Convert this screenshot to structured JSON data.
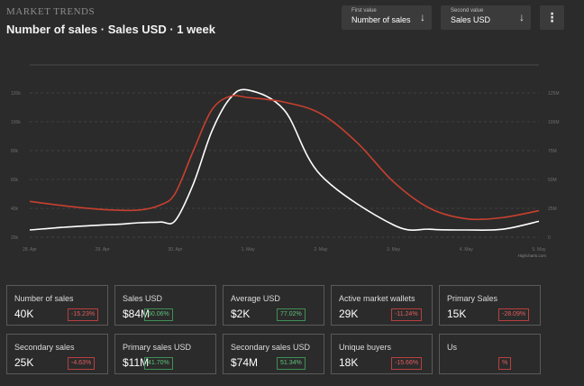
{
  "brand": "MARKET TRENDS",
  "title": "Number of sales · Sales USD · 1 week",
  "first_select": {
    "label": "First value",
    "value": "Number of sales"
  },
  "second_select": {
    "label": "Second value",
    "value": "Sales USD"
  },
  "icons": {
    "first_arrow": "arrow-down-icon",
    "second_arrow": "arrow-down-icon",
    "menu": "more-vertical-icon"
  },
  "icon_glyphs": {
    "arrow": "↓",
    "menu": "⋮"
  },
  "chart_data": {
    "type": "line",
    "x_ticks": [
      "28. Apr",
      "29. Apr",
      "30. Apr",
      "1. May",
      "2. May",
      "3. May",
      "4. May",
      "5. May"
    ],
    "y_left_ticks": [
      "20k",
      "40k",
      "60k",
      "80k",
      "100k",
      "120k"
    ],
    "y_left_range": [
      20000,
      120000
    ],
    "y_right_ticks": [
      "0",
      "25M",
      "50M",
      "75M",
      "100M",
      "125M"
    ],
    "y_right_range": [
      0,
      125000000
    ],
    "credit": "Highcharts.com",
    "grid": true,
    "series": [
      {
        "axis": "left",
        "color": "#ffffff",
        "x": [
          0,
          0.5,
          1,
          1.25,
          1.5,
          1.8,
          2,
          2.25,
          2.5,
          2.75,
          3,
          3.5,
          4,
          5,
          5.5,
          6,
          6.5,
          7
        ],
        "values": [
          25000,
          27000,
          28500,
          29000,
          30000,
          30500,
          31500,
          57000,
          93000,
          116000,
          122000,
          108000,
          63000,
          28500,
          25500,
          25000,
          25500,
          31000
        ]
      },
      {
        "axis": "right",
        "color": "#c8402f",
        "x": [
          0,
          0.5,
          1,
          1.5,
          1.8,
          2,
          2.25,
          2.5,
          2.75,
          3,
          3.5,
          4,
          4.5,
          5,
          5.5,
          6,
          6.5,
          7
        ],
        "values": [
          31000000,
          27000000,
          24000000,
          23500000,
          28000000,
          38000000,
          75000000,
          110000000,
          122000000,
          121000000,
          117000000,
          107000000,
          82000000,
          48000000,
          25000000,
          16000000,
          17000000,
          23000000
        ]
      }
    ]
  },
  "stats": [
    {
      "name": "Number of sales",
      "value": "40K",
      "change": "-15.23%",
      "dir": "neg"
    },
    {
      "name": "Sales USD",
      "value": "$84M",
      "change": "50.06%",
      "dir": "pos"
    },
    {
      "name": "Average USD",
      "value": "$2K",
      "change": "77.02%",
      "dir": "pos"
    },
    {
      "name": "Active market wallets",
      "value": "29K",
      "change": "-11.24%",
      "dir": "neg"
    },
    {
      "name": "Primary Sales",
      "value": "15K",
      "change": "-28.09%",
      "dir": "neg"
    },
    {
      "name": "Secondary sales",
      "value": "25K",
      "change": "-4.63%",
      "dir": "neg"
    },
    {
      "name": "Primary sales USD",
      "value": "$11M",
      "change": "41.70%",
      "dir": "pos"
    },
    {
      "name": "Secondary sales USD",
      "value": "$74M",
      "change": "51.34%",
      "dir": "pos"
    },
    {
      "name": "Unique buyers",
      "value": "18K",
      "change": "-15.66%",
      "dir": "neg"
    },
    {
      "name": "Us",
      "value": "",
      "change": "%",
      "dir": "neg"
    }
  ]
}
